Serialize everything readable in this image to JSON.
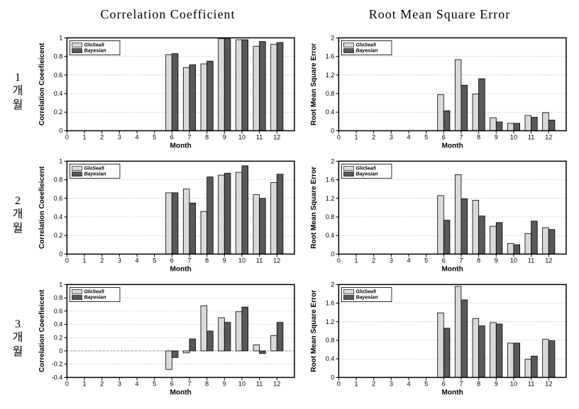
{
  "headers": {
    "left": "Correlation Coefficient",
    "right": "Root Mean Square Error"
  },
  "rowLabels": [
    "1 개 월",
    "2 개 월",
    "3 개 월"
  ],
  "legend": {
    "series_a": "GloSea5",
    "series_b": "Bayesian"
  },
  "colors": {
    "series_a": "#d9d9d9",
    "series_b": "#595959",
    "background": "#ffffff",
    "axis": "#000000",
    "grid": "#aaaaaa"
  },
  "global": {
    "xlabel": "Month",
    "xlim": [
      0,
      13
    ],
    "xticks": [
      0,
      1,
      2,
      3,
      4,
      5,
      6,
      7,
      8,
      9,
      10,
      11,
      12
    ],
    "bar_group_width": 0.7,
    "font_tick": 9,
    "font_axis": 10
  },
  "charts": {
    "cc1": {
      "type": "bar",
      "ylabel": "Correlation Coeefieicent",
      "ylim": [
        0,
        1
      ],
      "yticks": [
        0,
        0.2,
        0.4,
        0.6,
        0.8,
        1
      ],
      "categories": [
        6,
        7,
        8,
        9,
        10,
        11,
        12
      ],
      "series_a": [
        0.82,
        0.68,
        0.72,
        0.99,
        0.98,
        0.91,
        0.93
      ],
      "series_b": [
        0.83,
        0.71,
        0.75,
        0.99,
        0.98,
        0.96,
        0.95
      ],
      "show_zero_dash": false
    },
    "rmse1": {
      "type": "bar",
      "ylabel": "Root Mean Square Error",
      "ylim": [
        0,
        2
      ],
      "yticks": [
        0,
        0.4,
        0.8,
        1.2,
        1.6,
        2
      ],
      "categories": [
        6,
        7,
        8,
        9,
        10,
        11,
        12
      ],
      "series_a": [
        0.78,
        1.53,
        0.79,
        0.28,
        0.16,
        0.33,
        0.39
      ],
      "series_b": [
        0.43,
        0.98,
        1.12,
        0.19,
        0.16,
        0.29,
        0.23
      ],
      "show_zero_dash": false
    },
    "cc2": {
      "type": "bar",
      "ylabel": "Correlation Coeefieicent",
      "ylim": [
        0,
        1
      ],
      "yticks": [
        0,
        0.2,
        0.4,
        0.6,
        0.8,
        1
      ],
      "categories": [
        6,
        7,
        8,
        9,
        10,
        11,
        12
      ],
      "series_a": [
        0.66,
        0.7,
        0.46,
        0.85,
        0.88,
        0.64,
        0.77
      ],
      "series_b": [
        0.66,
        0.55,
        0.83,
        0.87,
        0.95,
        0.6,
        0.86
      ],
      "show_zero_dash": false
    },
    "rmse2": {
      "type": "bar",
      "ylabel": "Root Mean Square Error",
      "ylim": [
        0,
        2
      ],
      "yticks": [
        0,
        0.4,
        0.8,
        1.2,
        1.6,
        2
      ],
      "categories": [
        6,
        7,
        8,
        9,
        10,
        11,
        12
      ],
      "series_a": [
        1.26,
        1.71,
        1.16,
        0.6,
        0.23,
        0.44,
        0.57
      ],
      "series_b": [
        0.73,
        1.19,
        0.82,
        0.68,
        0.2,
        0.71,
        0.53
      ],
      "show_zero_dash": false
    },
    "cc3": {
      "type": "bar",
      "ylabel": "Correlation Coeefieicent",
      "ylim": [
        -0.4,
        1
      ],
      "yticks": [
        -0.4,
        -0.2,
        0,
        0.2,
        0.4,
        0.6,
        0.8,
        1
      ],
      "categories": [
        6,
        7,
        8,
        9,
        10,
        11,
        12
      ],
      "series_a": [
        -0.28,
        -0.03,
        0.68,
        0.5,
        0.59,
        0.09,
        0.23
      ],
      "series_b": [
        -0.1,
        0.18,
        0.3,
        0.43,
        0.66,
        -0.04,
        0.43
      ],
      "show_zero_dash": true
    },
    "rmse3": {
      "type": "bar",
      "ylabel": "Root Mean Square Error",
      "ylim": [
        0,
        2
      ],
      "yticks": [
        0,
        0.4,
        0.8,
        1.2,
        1.6,
        2
      ],
      "categories": [
        6,
        7,
        8,
        9,
        10,
        11,
        12
      ],
      "series_a": [
        1.39,
        1.96,
        1.27,
        1.18,
        0.74,
        0.39,
        0.82
      ],
      "series_b": [
        1.06,
        1.67,
        1.11,
        1.15,
        0.74,
        0.46,
        0.79
      ],
      "show_zero_dash": false
    }
  }
}
